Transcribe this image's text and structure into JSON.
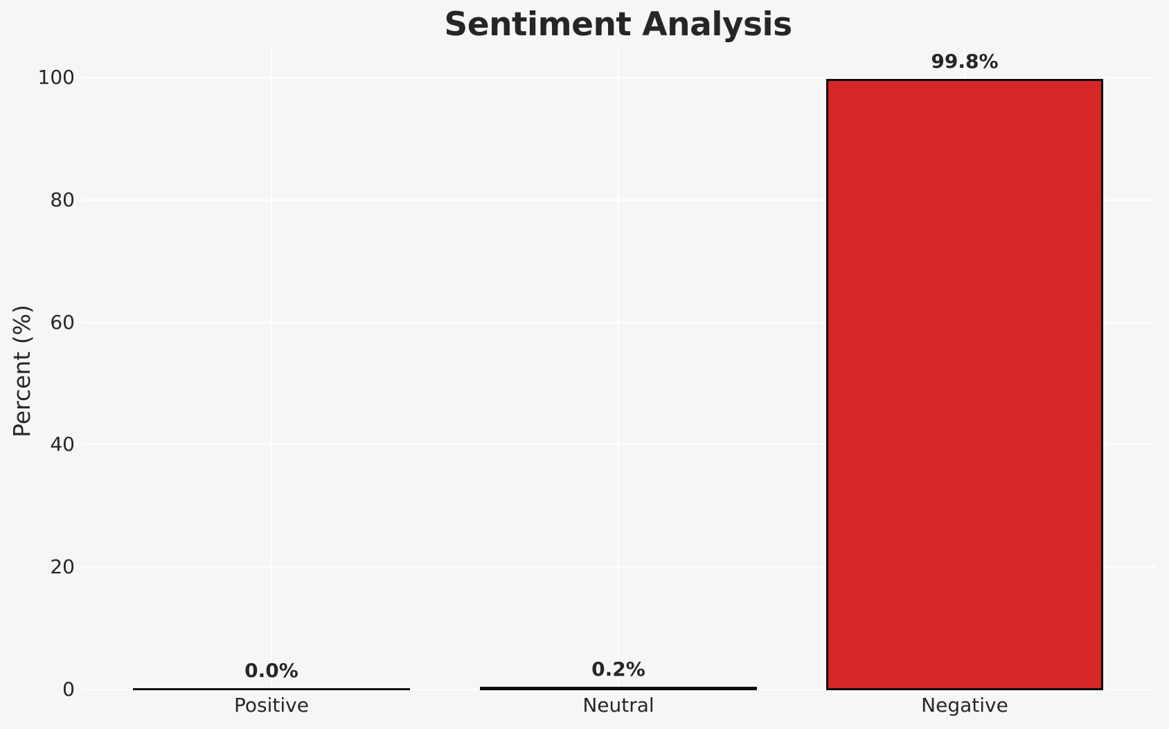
{
  "chart_data": {
    "type": "bar",
    "title": "Sentiment Analysis",
    "xlabel": "",
    "ylabel": "Percent (%)",
    "categories": [
      "Positive",
      "Neutral",
      "Negative"
    ],
    "values": [
      0.0,
      0.2,
      99.8
    ],
    "value_labels": [
      "0.0%",
      "0.2%",
      "99.8%"
    ],
    "yticks": [
      0,
      20,
      40,
      60,
      80,
      100
    ],
    "ytick_labels": [
      "0",
      "20",
      "40",
      "60",
      "80",
      "100"
    ],
    "ylim": [
      0,
      105
    ],
    "grid": true,
    "legend_position": "none",
    "colors": {
      "bar_fill": "#d62728",
      "bar_edge": "#0d0d0d",
      "background": "#f6f6f6",
      "gridline": "#ffffff",
      "text": "#262626"
    }
  }
}
